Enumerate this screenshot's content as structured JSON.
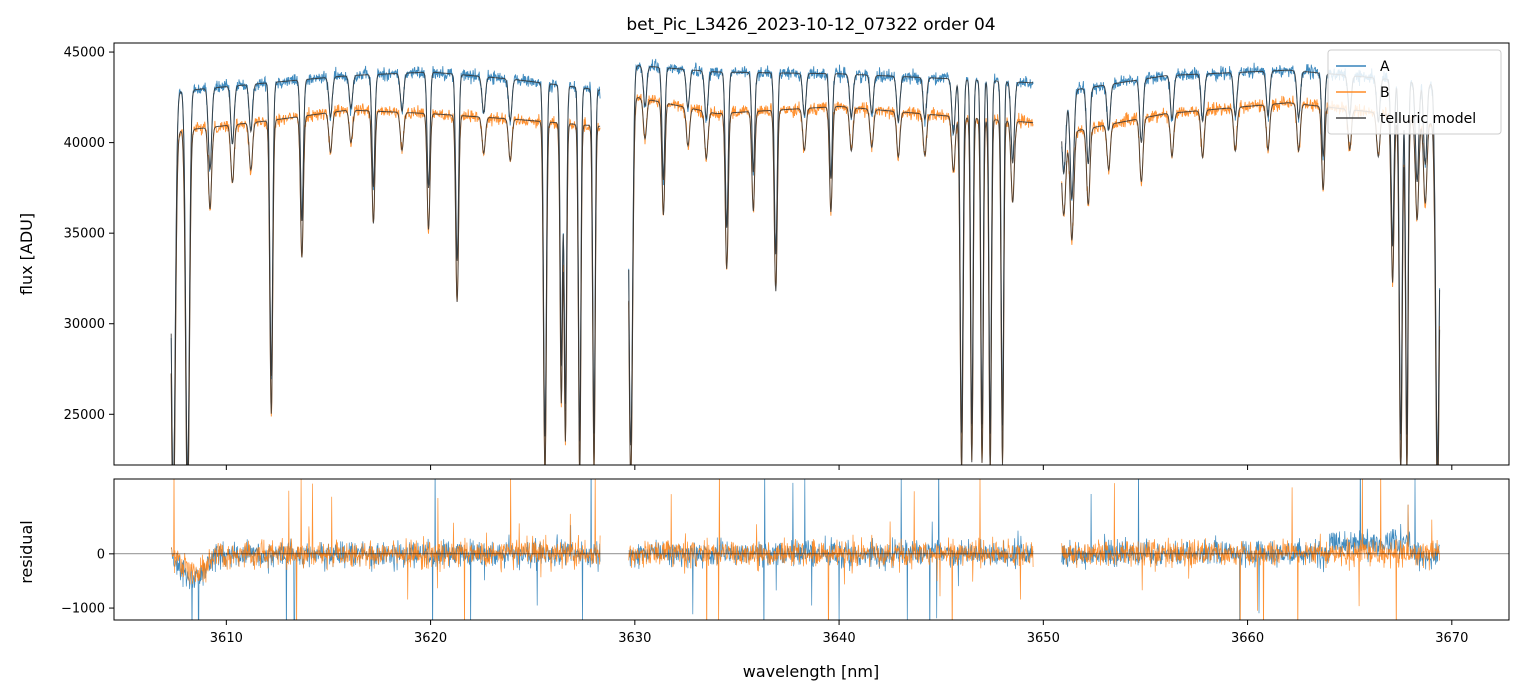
{
  "chart_data": [
    {
      "type": "line",
      "title": "bet_Pic_L3426_2023-10-12_07322  order 04",
      "xlabel": "",
      "ylabel": "flux [ADU]",
      "xlim": [
        3604.5,
        3672.8
      ],
      "ylim": [
        22200,
        45500
      ],
      "yticks": [
        25000,
        30000,
        35000,
        40000,
        45000
      ],
      "xticks": [
        3610,
        3620,
        3630,
        3640,
        3650,
        3660,
        3670
      ],
      "show_xtick_labels": false,
      "legend": {
        "position": "top-right",
        "entries": [
          "A",
          "B",
          "telluric model"
        ]
      },
      "segments": [
        [
          3607.3,
          3628.3
        ],
        [
          3629.7,
          3649.5
        ],
        [
          3650.9,
          3669.4
        ]
      ],
      "series": [
        {
          "name": "A",
          "color": "#1f77b4",
          "continuum": 43600,
          "noise": 260,
          "continuum_points": [
            [
              3607.3,
              42800
            ],
            [
              3612,
              43300
            ],
            [
              3616,
              43700
            ],
            [
              3620,
              43900
            ],
            [
              3624,
              43500
            ],
            [
              3628.3,
              42900
            ],
            [
              3629.7,
              44300
            ],
            [
              3634,
              43900
            ],
            [
              3640,
              43800
            ],
            [
              3646,
              43500
            ],
            [
              3649.5,
              43300
            ],
            [
              3650.9,
              42800
            ],
            [
              3656,
              43700
            ],
            [
              3662,
              44000
            ],
            [
              3666,
              43600
            ],
            [
              3669.4,
              43200
            ]
          ]
        },
        {
          "name": "B",
          "color": "#ff7f0e",
          "continuum": 41500,
          "noise": 260,
          "continuum_points": [
            [
              3607.3,
              40600
            ],
            [
              3612,
              41200
            ],
            [
              3616,
              41800
            ],
            [
              3620,
              41600
            ],
            [
              3624,
              41300
            ],
            [
              3628.3,
              40900
            ],
            [
              3629.7,
              42600
            ],
            [
              3634,
              41600
            ],
            [
              3640,
              42000
            ],
            [
              3646,
              41400
            ],
            [
              3649.5,
              41100
            ],
            [
              3650.9,
              40500
            ],
            [
              3656,
              41600
            ],
            [
              3662,
              42200
            ],
            [
              3666,
              41700
            ],
            [
              3669.4,
              41000
            ]
          ]
        },
        {
          "name": "telluric model",
          "color": "#333333"
        }
      ],
      "absorption_lines": [
        [
          3607.4,
          22000,
          0.1
        ],
        [
          3608.1,
          21500,
          0.09
        ],
        [
          3609.2,
          4500,
          0.08
        ],
        [
          3610.3,
          3200,
          0.08
        ],
        [
          3611.2,
          2600,
          0.08
        ],
        [
          3612.2,
          16200,
          0.07
        ],
        [
          3613.7,
          7800,
          0.07
        ],
        [
          3615.1,
          2200,
          0.08
        ],
        [
          3616.1,
          1800,
          0.08
        ],
        [
          3617.2,
          6200,
          0.07
        ],
        [
          3618.6,
          2100,
          0.08
        ],
        [
          3619.9,
          6400,
          0.07
        ],
        [
          3621.3,
          10300,
          0.07
        ],
        [
          3622.6,
          2000,
          0.08
        ],
        [
          3623.9,
          2300,
          0.08
        ],
        [
          3625.6,
          19500,
          0.07
        ],
        [
          3626.4,
          15400,
          0.06
        ],
        [
          3626.6,
          17500,
          0.06
        ],
        [
          3627.3,
          19500,
          0.06
        ],
        [
          3628.0,
          19000,
          0.06
        ],
        [
          3629.8,
          21000,
          0.09
        ],
        [
          3630.5,
          2200,
          0.08
        ],
        [
          3631.4,
          6200,
          0.07
        ],
        [
          3632.6,
          2100,
          0.08
        ],
        [
          3633.5,
          2600,
          0.08
        ],
        [
          3634.5,
          8600,
          0.07
        ],
        [
          3635.8,
          5500,
          0.07
        ],
        [
          3636.9,
          10000,
          0.07
        ],
        [
          3638.3,
          2300,
          0.08
        ],
        [
          3639.6,
          5800,
          0.07
        ],
        [
          3640.6,
          2400,
          0.08
        ],
        [
          3641.6,
          2100,
          0.08
        ],
        [
          3642.9,
          2500,
          0.08
        ],
        [
          3644.2,
          2300,
          0.08
        ],
        [
          3645.6,
          3000,
          0.08
        ],
        [
          3646.0,
          19500,
          0.07
        ],
        [
          3646.5,
          19000,
          0.06
        ],
        [
          3647.0,
          19000,
          0.06
        ],
        [
          3647.4,
          19500,
          0.06
        ],
        [
          3648.0,
          19000,
          0.06
        ],
        [
          3648.5,
          4500,
          0.08
        ],
        [
          3651.0,
          4500,
          0.1
        ],
        [
          3651.4,
          6000,
          0.09
        ],
        [
          3652.2,
          4200,
          0.08
        ],
        [
          3653.2,
          2500,
          0.08
        ],
        [
          3654.8,
          3500,
          0.08
        ],
        [
          3656.3,
          2400,
          0.08
        ],
        [
          3657.8,
          2600,
          0.08
        ],
        [
          3659.4,
          2400,
          0.08
        ],
        [
          3661.0,
          2500,
          0.08
        ],
        [
          3662.5,
          2600,
          0.08
        ],
        [
          3663.7,
          4600,
          0.07
        ],
        [
          3665.0,
          2200,
          0.08
        ],
        [
          3666.4,
          2400,
          0.08
        ],
        [
          3667.1,
          9200,
          0.07
        ],
        [
          3667.5,
          19500,
          0.07
        ],
        [
          3667.8,
          19500,
          0.06
        ],
        [
          3668.3,
          5500,
          0.08
        ],
        [
          3668.7,
          4500,
          0.08
        ],
        [
          3669.3,
          21000,
          0.09
        ]
      ]
    },
    {
      "type": "line",
      "title": "",
      "xlabel": "wavelength [nm]",
      "ylabel": "residual",
      "xlim": [
        3604.5,
        3672.8
      ],
      "ylim": [
        -1220,
        1380
      ],
      "yticks": [
        -1000,
        0
      ],
      "xticks": [
        3610,
        3620,
        3630,
        3640,
        3650,
        3660,
        3670
      ],
      "zero_line": true,
      "series": [
        {
          "name": "A",
          "color": "#1f77b4",
          "noise": 170
        },
        {
          "name": "B",
          "color": "#ff7f0e",
          "noise": 170
        }
      ]
    }
  ]
}
